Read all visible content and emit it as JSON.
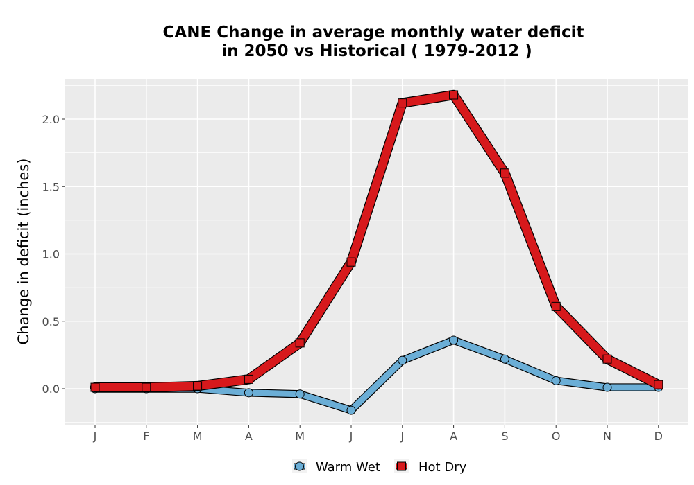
{
  "chart_data": {
    "type": "line",
    "title_line1": "CANE  Change in average monthly water deficit",
    "title_line2": "in 2050 vs Historical ( 1979-2012 )",
    "xlabel": "",
    "ylabel": "Change in deficit (inches)",
    "categories": [
      "J",
      "F",
      "M",
      "A",
      "M",
      "J",
      "J",
      "A",
      "S",
      "O",
      "N",
      "D"
    ],
    "ylim": [
      -0.26,
      2.3
    ],
    "yticks": [
      0.0,
      0.5,
      1.0,
      1.5,
      2.0
    ],
    "ytick_labels": [
      "0.0",
      "0.5",
      "1.0",
      "1.5",
      "2.0"
    ],
    "grid": true,
    "legend_position": "bottom",
    "series": [
      {
        "name": "Warm Wet",
        "color": "#6baed6",
        "marker": "circle",
        "values": [
          0.0,
          0.0,
          0.0,
          -0.03,
          -0.04,
          -0.16,
          0.21,
          0.36,
          0.22,
          0.06,
          0.01,
          0.01
        ]
      },
      {
        "name": "Hot Dry",
        "color": "#d7191c",
        "marker": "square",
        "values": [
          0.01,
          0.01,
          0.02,
          0.07,
          0.34,
          0.94,
          2.12,
          2.18,
          1.6,
          0.61,
          0.22,
          0.03
        ]
      }
    ],
    "colors": {
      "panel_background": "#ebebeb",
      "grid_line": "#ffffff",
      "outline": "#000000"
    }
  }
}
